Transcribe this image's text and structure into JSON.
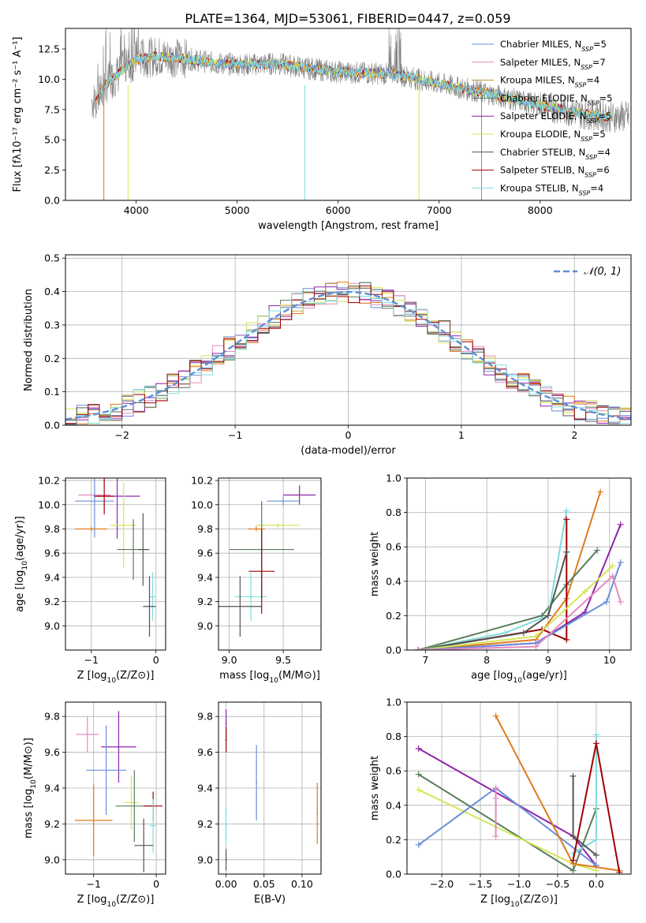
{
  "title": "PLATE=1364, MJD=53061, FIBERID=0447, z=0.059",
  "colors": {
    "chabrier_miles": "#6a8fd8",
    "salpeter_miles": "#e38bbf",
    "kroupa_miles": "#b8912a",
    "chabrier_elodie": "#5a7d5a",
    "salpeter_elodie": "#8e24aa",
    "kroupa_elodie": "#d4e65a",
    "chabrier_stelib": "#555555",
    "salpeter_stelib": "#a00000",
    "kroupa_stelib": "#7fdcdc",
    "orange": "#e07b1a",
    "data": "#808080",
    "gaussian": "#5b8fd6",
    "grid": "#b0b0b0"
  },
  "chart_data": [
    {
      "type": "line",
      "xlabel": "wavelength [Angstrom, rest frame]",
      "ylabel": "Flux [fλ10⁻¹⁷ erg cm⁻² s⁻¹ A⁻¹]",
      "xlim": [
        3300,
        8900
      ],
      "ylim": [
        0,
        14.2
      ],
      "xticks": [
        "4000",
        "5000",
        "6000",
        "7000",
        "8000"
      ],
      "yticks": [
        "0.0",
        "2.5",
        "5.0",
        "7.5",
        "10.0",
        "12.5"
      ],
      "grid": false,
      "legend_position": "upper right",
      "legend": [
        "Chabrier MILES, N",
        "Salpeter MILES, N",
        "Kroupa MILES, N",
        "Chabrier ELODIE, N",
        "Salpeter ELODIE, N",
        "Kroupa ELODIE, N",
        "Chabrier STELIB, N",
        "Salpeter STELIB, N",
        "Kroupa STELIB, N"
      ],
      "legend_ssp": [
        "5",
        "7",
        "4",
        "5",
        "5",
        "5",
        "4",
        "6",
        "4"
      ],
      "ssp_subscript": "SSP",
      "continuum": {
        "x": [
          3600,
          3700,
          3900,
          4000,
          4200,
          4500,
          4800,
          5100,
          5400,
          5700,
          6000,
          6300,
          6600,
          6900,
          7200,
          7500,
          7800,
          8100,
          8400,
          8700
        ],
        "y": [
          8.2,
          9.6,
          11.0,
          11.6,
          11.9,
          11.7,
          11.3,
          11.2,
          11.3,
          10.9,
          10.6,
          10.5,
          10.4,
          9.8,
          9.3,
          8.8,
          8.2,
          7.7,
          7.2,
          6.9
        ]
      }
    },
    {
      "type": "histogram",
      "xlabel": "(data-model)/error",
      "ylabel": "Normed distribution",
      "xlim": [
        -2.5,
        2.5
      ],
      "ylim": [
        0,
        0.51
      ],
      "xticks": [
        "−2",
        "−1",
        "0",
        "1",
        "2"
      ],
      "yticks": [
        "0.0",
        "0.1",
        "0.2",
        "0.3",
        "0.4",
        "0.5"
      ],
      "grid": true,
      "legend_position": "upper right",
      "legend": [
        "𝒩(0, 1)"
      ],
      "bin_width": 0.1
    },
    {
      "type": "scatter",
      "xlabel": "Z [log10(Z/Z⊙)]",
      "ylabel": "age  [log10(age/yr)]",
      "xlim": [
        -1.4,
        0.15
      ],
      "ylim": [
        8.8,
        10.22
      ],
      "xticks": [
        "−1",
        "0"
      ],
      "yticks": [
        "9.0",
        "9.2",
        "9.4",
        "9.6",
        "9.8",
        "10.0",
        "10.2"
      ],
      "points": [
        {
          "series": "salpeter_miles",
          "x": -0.95,
          "y": 10.08
        },
        {
          "series": "chabrier_miles",
          "x": -0.95,
          "y": 10.03
        },
        {
          "series": "salpeter_elodie",
          "x": -0.6,
          "y": 10.07
        },
        {
          "series": "salpeter_stelib",
          "x": -0.8,
          "y": 10.07
        },
        {
          "series": "kroupa_elodie",
          "x": -0.5,
          "y": 9.83
        },
        {
          "series": "orange",
          "x": -1.0,
          "y": 9.8
        },
        {
          "series": "chabrier_elodie",
          "x": -0.35,
          "y": 9.63
        },
        {
          "series": "chabrier_stelib",
          "x": -0.2,
          "y": 9.63
        },
        {
          "series": "kroupa_stelib",
          "x": -0.05,
          "y": 9.24
        },
        {
          "series": "chabrier_stelib",
          "x": -0.1,
          "y": 9.16
        }
      ]
    },
    {
      "type": "scatter",
      "xlabel": "mass [log10(M/M⊙)]",
      "ylabel": "",
      "xlim": [
        8.9,
        9.85
      ],
      "ylim": [
        8.8,
        10.22
      ],
      "xticks": [
        "9.0",
        "9.5"
      ],
      "yticks": [
        "9.0",
        "9.2",
        "9.4",
        "9.6",
        "9.8",
        "10.0",
        "10.2"
      ],
      "points": [
        {
          "series": "salpeter_elodie",
          "x": 9.65,
          "y": 10.08
        },
        {
          "series": "chabrier_miles",
          "x": 9.5,
          "y": 10.03
        },
        {
          "series": "kroupa_elodie",
          "x": 9.45,
          "y": 9.83
        },
        {
          "series": "orange",
          "x": 9.25,
          "y": 9.8
        },
        {
          "series": "chabrier_elodie",
          "x": 9.3,
          "y": 9.63
        },
        {
          "series": "kroupa_stelib",
          "x": 9.2,
          "y": 9.24
        },
        {
          "series": "salpeter_stelib",
          "x": 9.3,
          "y": 9.45
        },
        {
          "series": "chabrier_stelib",
          "x": 9.1,
          "y": 9.16
        }
      ]
    },
    {
      "type": "line",
      "xlabel": "age  [log10(age/yr)]",
      "ylabel": "mass weight",
      "xlim": [
        6.7,
        10.35
      ],
      "ylim": [
        0,
        1
      ],
      "xticks": [
        "7",
        "8",
        "9",
        "10"
      ],
      "yticks": [
        "0.0",
        "0.2",
        "0.4",
        "0.6",
        "0.8",
        "1.0"
      ],
      "grid": true,
      "series": [
        {
          "color": "orange",
          "x": [
            6.88,
            8.8,
            9.3,
            9.85
          ],
          "y": [
            0.0,
            0.06,
            0.3,
            0.92
          ]
        },
        {
          "color": "salpeter_elodie",
          "x": [
            6.88,
            8.8,
            9.6,
            10.18
          ],
          "y": [
            0.0,
            0.04,
            0.22,
            0.73
          ]
        },
        {
          "color": "chabrier_elodie",
          "x": [
            6.88,
            8.9,
            9.3,
            9.8
          ],
          "y": [
            0.0,
            0.2,
            0.38,
            0.58
          ]
        },
        {
          "color": "kroupa_stelib",
          "x": [
            6.88,
            8.3,
            9.0,
            9.3
          ],
          "y": [
            0.0,
            0.1,
            0.2,
            0.81
          ]
        },
        {
          "color": "salpeter_stelib",
          "x": [
            6.88,
            8.9,
            9.3,
            9.3
          ],
          "y": [
            0.0,
            0.12,
            0.06,
            0.76
          ]
        },
        {
          "color": "chabrier_stelib",
          "x": [
            6.88,
            8.6,
            9.0,
            9.3
          ],
          "y": [
            0.0,
            0.1,
            0.2,
            0.57
          ]
        },
        {
          "color": "kroupa_elodie",
          "x": [
            6.88,
            8.8,
            9.6,
            10.05
          ],
          "y": [
            0.0,
            0.08,
            0.34,
            0.49
          ]
        },
        {
          "color": "chabrier_miles",
          "x": [
            6.88,
            8.8,
            9.95,
            10.18
          ],
          "y": [
            0.0,
            0.04,
            0.28,
            0.51
          ]
        },
        {
          "color": "salpeter_miles",
          "x": [
            6.88,
            8.8,
            10.05,
            10.18
          ],
          "y": [
            0.0,
            0.02,
            0.43,
            0.28
          ]
        }
      ]
    },
    {
      "type": "scatter",
      "xlabel": "Z [log10(Z/Z⊙)]",
      "ylabel": "mass [log10(M/M⊙)]",
      "xlim": [
        -1.45,
        0.15
      ],
      "ylim": [
        8.92,
        9.88
      ],
      "xticks": [
        "−1",
        "0"
      ],
      "yticks": [
        "9.0",
        "9.2",
        "9.4",
        "9.6",
        "9.8"
      ],
      "points": [
        {
          "series": "salpeter_miles",
          "x": -1.1,
          "y": 9.7
        },
        {
          "series": "salpeter_elodie",
          "x": -0.6,
          "y": 9.63
        },
        {
          "series": "chabrier_miles",
          "x": -0.8,
          "y": 9.5
        },
        {
          "series": "kroupa_elodie",
          "x": -0.4,
          "y": 9.32
        },
        {
          "series": "chabrier_elodie",
          "x": -0.35,
          "y": 9.3
        },
        {
          "series": "salpeter_stelib",
          "x": -0.05,
          "y": 9.3
        },
        {
          "series": "orange",
          "x": -1.0,
          "y": 9.22
        },
        {
          "series": "kroupa_stelib",
          "x": -0.05,
          "y": 9.19
        },
        {
          "series": "chabrier_stelib",
          "x": -0.2,
          "y": 9.08
        }
      ]
    },
    {
      "type": "scatter",
      "xlabel": "E(B-V)",
      "ylabel": "",
      "xlim": [
        -0.01,
        0.125
      ],
      "ylim": [
        8.92,
        9.88
      ],
      "xticks": [
        "0.00",
        "0.05",
        "0.10"
      ],
      "yticks": [
        "9.0",
        "9.2",
        "9.4",
        "9.6",
        "9.8"
      ],
      "points": [
        {
          "series": "salpeter_elodie",
          "x": 0.0,
          "y": 9.76
        },
        {
          "series": "salpeter_stelib",
          "x": 0.0,
          "y": 9.67
        },
        {
          "series": "chabrier_miles",
          "x": 0.04,
          "y": 9.43
        },
        {
          "series": "orange",
          "x": 0.12,
          "y": 9.26
        },
        {
          "series": "kroupa_stelib",
          "x": 0.0,
          "y": 9.19
        },
        {
          "series": "chabrier_stelib",
          "x": 0.0,
          "y": 9.0
        }
      ]
    },
    {
      "type": "line",
      "xlabel": "Z [log10(Z/Z⊙)]",
      "ylabel": "mass weight",
      "xlim": [
        -2.45,
        0.45
      ],
      "ylim": [
        0,
        1
      ],
      "xticks": [
        "−2.0",
        "−1.5",
        "−1.0",
        "−0.5",
        "0.0"
      ],
      "yticks": [
        "0.0",
        "0.2",
        "0.4",
        "0.6",
        "0.8",
        "1.0"
      ],
      "grid": true,
      "series": [
        {
          "color": "salpeter_elodie",
          "x": [
            -2.3,
            -0.3,
            0.0
          ],
          "y": [
            0.73,
            0.22,
            0.05
          ]
        },
        {
          "color": "chabrier_elodie",
          "x": [
            -2.3,
            -0.3,
            0.0
          ],
          "y": [
            0.58,
            0.02,
            0.38
          ]
        },
        {
          "color": "kroupa_elodie",
          "x": [
            -2.3,
            -0.3,
            0.0
          ],
          "y": [
            0.49,
            0.06,
            0.02
          ]
        },
        {
          "color": "chabrier_miles",
          "x": [
            -2.3,
            -1.3,
            0.0
          ],
          "y": [
            0.17,
            0.5,
            0.05
          ]
        },
        {
          "color": "orange",
          "x": [
            -1.3,
            -0.3,
            0.3
          ],
          "y": [
            0.92,
            0.06,
            0.02
          ]
        },
        {
          "color": "salpeter_miles",
          "x": [
            -1.3,
            -1.3,
            -1.3
          ],
          "y": [
            0.5,
            0.44,
            0.22
          ]
        },
        {
          "color": "kroupa_stelib",
          "x": [
            0.0,
            0.0,
            -0.3
          ],
          "y": [
            0.81,
            0.2,
            0.12
          ]
        },
        {
          "color": "chabrier_stelib",
          "x": [
            -0.3,
            -0.3,
            0.0
          ],
          "y": [
            0.57,
            0.22,
            0.11
          ]
        },
        {
          "color": "salpeter_stelib",
          "x": [
            -0.3,
            0.0,
            0.3
          ],
          "y": [
            0.08,
            0.76,
            0.01
          ]
        }
      ]
    }
  ]
}
